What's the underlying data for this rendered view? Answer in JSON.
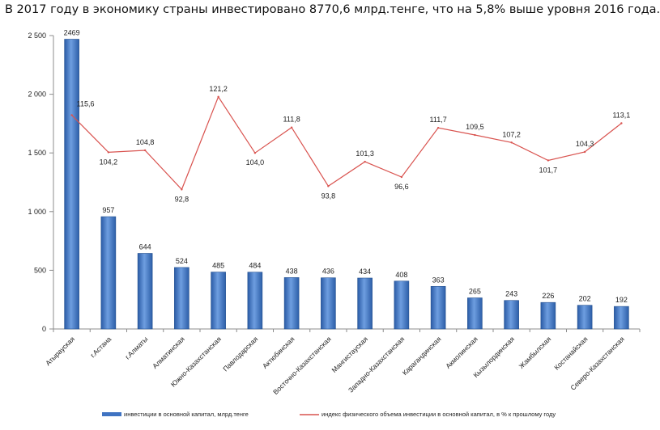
{
  "chart_data": {
    "type": "bar",
    "title": "В 2017 году в экономику страны инвестировано 8770,6 млрд.тенге, что на 5,8% выше уровня 2016 года.",
    "categories": [
      "Атырауская",
      "г.Астана",
      "г.Алматы",
      "Алматинская",
      "Южно-Казахстанская",
      "Павлодарская",
      "Актюбинская",
      "Восточно-Казахстанская",
      "Мангистауская",
      "Западно-Казахстанская",
      "Карагандинская",
      "Акмолинская",
      "Кызылординская",
      "Жамбылская",
      "Костанайская",
      "Северо-Казахстанская"
    ],
    "series": [
      {
        "name": "инвестиции в основной капитал, млрд.тенге",
        "type": "bar",
        "axis": "left",
        "color": "#3f73c2",
        "values": [
          2469,
          957,
          644,
          524,
          485,
          484,
          438,
          436,
          434,
          408,
          363,
          265,
          243,
          226,
          202,
          192
        ],
        "labels": [
          "2469",
          "957",
          "644",
          "524",
          "485",
          "484",
          "438",
          "436",
          "434",
          "408",
          "363",
          "265",
          "243",
          "226",
          "202",
          "192"
        ]
      },
      {
        "name": "индекс физического объема инвестиции в основной капитал, в % к прошлому году",
        "type": "line",
        "axis": "secondary",
        "color": "#d9534f",
        "values": [
          115.6,
          104.2,
          104.8,
          92.8,
          121.2,
          104.0,
          111.8,
          93.8,
          101.3,
          96.6,
          111.7,
          109.5,
          107.2,
          101.7,
          104.3,
          113.1
        ],
        "labels": [
          "115,6",
          "104,2",
          "104,8",
          "92,8",
          "121,2",
          "104,0",
          "111,8",
          "93,8",
          "101,3",
          "96,6",
          "111,7",
          "109,5",
          "107,2",
          "101,7",
          "104,3",
          "113,1"
        ]
      }
    ],
    "y_axis": {
      "ylim": [
        0,
        2500
      ],
      "ticks": [
        0,
        500,
        1000,
        1500,
        2000,
        2500
      ],
      "tick_labels": [
        "0",
        "500",
        "1 000",
        "1 500",
        "2 000",
        "2 500"
      ]
    },
    "secondary_axis": {
      "hidden": true,
      "ylim": [
        50,
        140
      ]
    },
    "legend": {
      "position": "bottom"
    }
  }
}
